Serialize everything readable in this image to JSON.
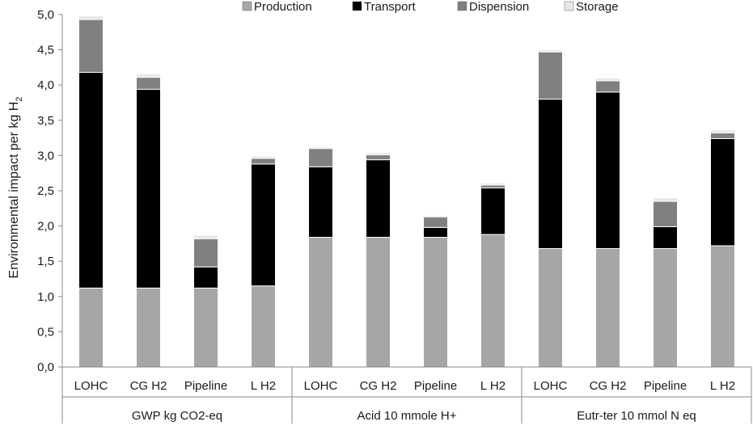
{
  "chart_data": {
    "type": "bar",
    "stacked": true,
    "title": "",
    "ylabel": "Environmental impact per kg H2",
    "ylim": [
      0,
      5
    ],
    "ytick_labels": [
      "0,0",
      "0,5",
      "1,0",
      "1,5",
      "2,0",
      "2,5",
      "3,0",
      "3,5",
      "4,0",
      "4,5",
      "5,0"
    ],
    "grid": false,
    "legend_position": "top",
    "groups": [
      {
        "label": "GWP kg CO2-eq",
        "categories": [
          "LOHC",
          "CG H2",
          "Pipeline",
          "L H2"
        ]
      },
      {
        "label": "Acid 10 mmole H+",
        "categories": [
          "LOHC",
          "CG H2",
          "Pipeline",
          "L H2"
        ]
      },
      {
        "label": "Eutr-ter 10 mmol N eq",
        "categories": [
          "LOHC",
          "CG H2",
          "Pipeline",
          "L H2"
        ]
      }
    ],
    "series": [
      {
        "name": "Production",
        "color": "#a6a6a6",
        "values": [
          1.12,
          1.12,
          1.12,
          1.15,
          1.84,
          1.84,
          1.84,
          1.88,
          1.68,
          1.68,
          1.68,
          1.72
        ]
      },
      {
        "name": "Transport",
        "color": "#000000",
        "values": [
          3.06,
          2.82,
          0.3,
          1.73,
          1.0,
          1.1,
          0.14,
          0.66,
          2.12,
          2.22,
          0.31,
          1.52
        ]
      },
      {
        "name": "Dispension",
        "color": "#808080",
        "values": [
          0.75,
          0.17,
          0.4,
          0.08,
          0.26,
          0.07,
          0.15,
          0.04,
          0.67,
          0.16,
          0.36,
          0.08
        ]
      },
      {
        "name": "Storage",
        "color": "#e7e7e7",
        "values": [
          0.05,
          0.05,
          0.05,
          0.03,
          0.02,
          0.03,
          0.02,
          0.03,
          0.03,
          0.04,
          0.05,
          0.04
        ]
      }
    ]
  }
}
